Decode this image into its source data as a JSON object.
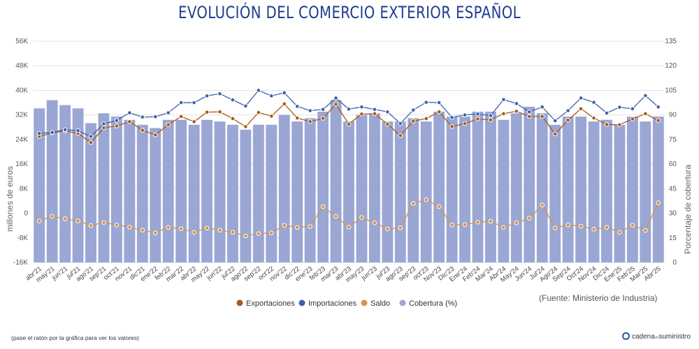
{
  "title": "EVOLUCIÓN DEL COMERCIO EXTERIOR ESPAÑOL",
  "source": "(Fuente: Ministerio de Industria)",
  "hint": "(pase el ratón por la gráfica para ver los valores)",
  "brand": {
    "prefix": "cadena",
    "small": "de",
    "suffix": "suministro"
  },
  "colors": {
    "exportaciones": "#a85a1c",
    "importaciones": "#3f62a8",
    "saldo": "#d2954b",
    "cobertura": "#9aa6d4"
  },
  "chart_data": {
    "type": "bar",
    "categories": [
      "abr'21",
      "may'21",
      "jun'21",
      "jul'21",
      "ago'21",
      "sep'21",
      "oct'21",
      "nov'21",
      "dic'21",
      "ene'22",
      "feb'22",
      "mar'22",
      "abr'22",
      "may'22",
      "jun'22",
      "jul'22",
      "ago'22",
      "sep'22",
      "oct'22",
      "nov'22",
      "dic'22",
      "ene'23",
      "feb'23",
      "mar'23",
      "abr'23",
      "may'23",
      "jun'23",
      "jul'23",
      "ago'23",
      "sep'23",
      "oct'23",
      "Nov'23",
      "Dic'23",
      "Ene'24",
      "Feb'24",
      "Mar'24",
      "Abr'24",
      "May'24",
      "Jun'24",
      "Jul'24",
      "Ago'24",
      "Sep'24",
      "Oct'24",
      "Nov'24",
      "Dic'24",
      "Ene'25",
      "Feb'25",
      "Mar'25",
      "Abr'25"
    ],
    "left_axis": {
      "label": "millones de euros",
      "min": -16000,
      "max": 56000,
      "ticks": [
        -16000,
        -8000,
        0,
        8000,
        16000,
        24000,
        32000,
        40000,
        48000,
        56000
      ],
      "tick_labels": [
        "-16K",
        "-8K",
        "0",
        "8K",
        "16K",
        "24K",
        "32K",
        "40K",
        "48K",
        "56K"
      ]
    },
    "right_axis": {
      "label": "Porcentaje de cobertura",
      "min": 0,
      "max": 135,
      "ticks": [
        0,
        15,
        30,
        45,
        60,
        75,
        90,
        105,
        120,
        135
      ],
      "tick_labels": [
        "0",
        "15",
        "30",
        "45",
        "60",
        "75",
        "90",
        "105",
        "120",
        "135"
      ]
    },
    "legend_position": "bottom",
    "grid": true,
    "series": [
      {
        "name": "Exportaciones",
        "type": "line",
        "axis": "left",
        "color": "#a85a1c",
        "values": [
          25000,
          26200,
          26800,
          26000,
          23000,
          27800,
          28400,
          29800,
          27000,
          25500,
          28800,
          31500,
          29800,
          32900,
          33000,
          30800,
          28200,
          32800,
          31600,
          35600,
          31000,
          29800,
          30900,
          35500,
          29000,
          32300,
          32400,
          29000,
          25300,
          30000,
          30800,
          33000,
          28200,
          29200,
          30700,
          30400,
          32400,
          33200,
          31500,
          31500,
          25800,
          30300,
          34000,
          31000,
          28900,
          28800,
          30700,
          32400,
          30200
        ]
      },
      {
        "name": "Importaciones",
        "type": "line",
        "axis": "left",
        "color": "#3f62a8",
        "values": [
          26000,
          26300,
          27200,
          26900,
          25000,
          29100,
          30200,
          32700,
          31300,
          31400,
          32700,
          36000,
          36000,
          38200,
          38900,
          36900,
          34900,
          40000,
          38200,
          39200,
          34800,
          33400,
          33800,
          37500,
          33900,
          34600,
          33800,
          33000,
          29200,
          33600,
          36100,
          36000,
          31200,
          32000,
          32300,
          31800,
          37000,
          35700,
          33000,
          34600,
          30100,
          33400,
          37500,
          36100,
          32600,
          34500,
          34000,
          38300,
          34600
        ]
      },
      {
        "name": "Saldo",
        "type": "line",
        "axis": "left",
        "color": "#d2954b",
        "values": [
          -2500,
          -1000,
          -1800,
          -2500,
          -4000,
          -3000,
          -3800,
          -4500,
          -5500,
          -6400,
          -4600,
          -5000,
          -6200,
          -4800,
          -5500,
          -6200,
          -7400,
          -6600,
          -6400,
          -3900,
          -4600,
          -4300,
          2200,
          -1000,
          -4500,
          -1400,
          -3100,
          -5100,
          -4700,
          3200,
          4400,
          2200,
          -3800,
          -3700,
          -2900,
          -2600,
          -4600,
          -3100,
          -1600,
          2700,
          -4800,
          -3800,
          -4200,
          -5200,
          -4600,
          -6200,
          -3900,
          -5600,
          3400
        ]
      },
      {
        "name": "Cobertura (%)",
        "type": "bar",
        "axis": "right",
        "color": "#9aa6d4",
        "values": [
          94,
          99,
          96,
          94,
          85,
          91,
          89,
          87,
          84,
          82,
          87,
          87,
          84,
          87,
          86,
          84,
          81,
          84,
          84,
          90,
          86,
          88,
          92,
          99,
          86,
          90,
          91,
          86,
          86,
          88,
          86,
          92,
          89,
          89,
          92,
          92,
          87,
          91,
          95,
          91,
          84,
          89,
          89,
          86,
          87,
          84,
          89,
          86,
          89
        ]
      }
    ]
  }
}
